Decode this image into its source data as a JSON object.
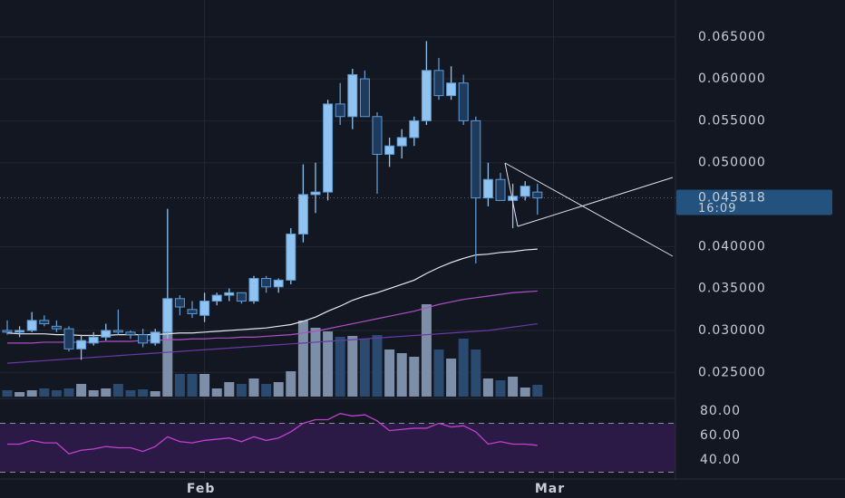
{
  "chart_data": {
    "type": "candlestick",
    "open": [
      0.03,
      0.0298,
      0.03,
      0.0312,
      0.0305,
      0.0302,
      0.0278,
      0.0285,
      0.0292,
      0.03,
      0.0298,
      0.0295,
      0.0285,
      0.0298,
      0.0338,
      0.0325,
      0.0318,
      0.0335,
      0.0342,
      0.0345,
      0.0335,
      0.0362,
      0.0352,
      0.036,
      0.0415,
      0.0462,
      0.0465,
      0.057,
      0.0555,
      0.06,
      0.0555,
      0.051,
      0.052,
      0.053,
      0.055,
      0.061,
      0.058,
      0.0595,
      0.055,
      0.0458,
      0.048,
      0.0455,
      0.046,
      0.0465
    ],
    "high": [
      0.0312,
      0.0305,
      0.0322,
      0.0318,
      0.0312,
      0.0305,
      0.0295,
      0.0298,
      0.0308,
      0.0325,
      0.03,
      0.0302,
      0.0302,
      0.0445,
      0.0342,
      0.0335,
      0.0345,
      0.0345,
      0.035,
      0.0345,
      0.0365,
      0.0365,
      0.0362,
      0.0422,
      0.0498,
      0.05,
      0.0575,
      0.0595,
      0.0612,
      0.061,
      0.056,
      0.053,
      0.054,
      0.0555,
      0.0645,
      0.0625,
      0.0615,
      0.0605,
      0.0555,
      0.05,
      0.0488,
      0.0475,
      0.0478,
      0.0475
    ],
    "low": [
      0.0295,
      0.0292,
      0.0298,
      0.0305,
      0.0298,
      0.0275,
      0.0265,
      0.0282,
      0.0288,
      0.0295,
      0.029,
      0.028,
      0.0282,
      0.029,
      0.0318,
      0.0315,
      0.031,
      0.033,
      0.0335,
      0.0332,
      0.0332,
      0.0345,
      0.0345,
      0.0355,
      0.0405,
      0.044,
      0.0455,
      0.0545,
      0.054,
      0.0555,
      0.0463,
      0.0495,
      0.0505,
      0.052,
      0.0545,
      0.0575,
      0.0575,
      0.0545,
      0.038,
      0.0448,
      0.0455,
      0.0422,
      0.0455,
      0.0438
    ],
    "close": [
      0.0298,
      0.03,
      0.0312,
      0.0308,
      0.0302,
      0.0278,
      0.0288,
      0.0292,
      0.03,
      0.0298,
      0.0295,
      0.0285,
      0.0298,
      0.0338,
      0.0328,
      0.032,
      0.0335,
      0.0342,
      0.0345,
      0.0335,
      0.0362,
      0.0352,
      0.036,
      0.0415,
      0.0462,
      0.0465,
      0.057,
      0.0555,
      0.0605,
      0.0555,
      0.051,
      0.052,
      0.053,
      0.055,
      0.061,
      0.058,
      0.0595,
      0.055,
      0.0458,
      0.048,
      0.0455,
      0.046,
      0.0472,
      0.0458
    ],
    "volume": [
      7,
      5,
      7,
      9,
      7,
      9,
      14,
      7,
      9,
      14,
      7,
      8,
      6,
      108,
      25,
      25,
      25,
      9,
      16,
      14,
      20,
      14,
      16,
      28,
      84,
      76,
      72,
      66,
      67,
      64,
      68,
      52,
      48,
      44,
      102,
      52,
      42,
      64,
      52,
      20,
      18,
      22,
      10,
      13
    ],
    "volume_ylim": [
      0,
      150
    ],
    "moving_averages": [
      {
        "color": "#e8e8ee",
        "values": [
          0.0297,
          0.0296,
          0.0296,
          0.0296,
          0.0295,
          0.0295,
          0.0294,
          0.0294,
          0.0294,
          0.0295,
          0.0295,
          0.0295,
          0.0295,
          0.0296,
          0.0297,
          0.0297,
          0.0298,
          0.0299,
          0.03,
          0.0301,
          0.0302,
          0.0303,
          0.0305,
          0.0307,
          0.0311,
          0.0316,
          0.0323,
          0.0329,
          0.0336,
          0.0341,
          0.0345,
          0.035,
          0.0355,
          0.036,
          0.0368,
          0.0375,
          0.0381,
          0.0386,
          0.039,
          0.0391,
          0.0393,
          0.0394,
          0.0396,
          0.0397
        ]
      },
      {
        "color": "#b04fc8",
        "values": [
          0.0285,
          0.0285,
          0.0285,
          0.0286,
          0.0286,
          0.0286,
          0.0286,
          0.0286,
          0.0287,
          0.0287,
          0.0287,
          0.0288,
          0.0288,
          0.0289,
          0.0289,
          0.029,
          0.029,
          0.0291,
          0.0291,
          0.0292,
          0.0292,
          0.0293,
          0.0294,
          0.0295,
          0.0297,
          0.0299,
          0.0302,
          0.0305,
          0.0308,
          0.0311,
          0.0314,
          0.0317,
          0.032,
          0.0323,
          0.0327,
          0.0331,
          0.0334,
          0.0337,
          0.0339,
          0.0341,
          0.0343,
          0.0345,
          0.0346,
          0.0347
        ]
      },
      {
        "color": "#6a3aa8",
        "values": [
          0.0261,
          0.0262,
          0.0263,
          0.0264,
          0.0265,
          0.0266,
          0.0267,
          0.0268,
          0.0269,
          0.027,
          0.0271,
          0.0272,
          0.0273,
          0.0274,
          0.0275,
          0.0276,
          0.0277,
          0.0278,
          0.0279,
          0.028,
          0.0281,
          0.0282,
          0.0283,
          0.0284,
          0.0285,
          0.0286,
          0.0287,
          0.0288,
          0.0289,
          0.029,
          0.0291,
          0.0292,
          0.0293,
          0.0294,
          0.0295,
          0.0296,
          0.0297,
          0.0298,
          0.0299,
          0.03,
          0.0302,
          0.0304,
          0.0306,
          0.0308
        ]
      }
    ],
    "up_color": "#90c3ef",
    "down_color": "#1e3a5c",
    "outline_color": "#5d9bd6",
    "volume_up_color": "#7d8ea8",
    "volume_down_color": "#2a4a70",
    "ylim": [
      0.0219,
      0.0694
    ],
    "yticks": [
      {
        "value": 0.025,
        "label": "0.025000"
      },
      {
        "value": 0.03,
        "label": "0.030000"
      },
      {
        "value": 0.035,
        "label": "0.035000"
      },
      {
        "value": 0.04,
        "label": "0.040000"
      },
      {
        "value": 0.05,
        "label": "0.050000"
      },
      {
        "value": 0.055,
        "label": "0.055000"
      },
      {
        "value": 0.06,
        "label": "0.060000"
      },
      {
        "value": 0.065,
        "label": "0.065000"
      }
    ],
    "xticks": [
      {
        "value": 16,
        "label": "Feb"
      },
      {
        "value": 44.3,
        "label": "Mar"
      }
    ],
    "last_price": {
      "value": 0.045818,
      "label": "0.045818"
    },
    "countdown": "16:09",
    "price_label_color": "#22527d",
    "rsi": {
      "color": "#c040d0",
      "values": [
        53,
        53,
        56,
        54,
        54,
        45,
        48,
        49,
        51,
        50,
        50,
        47,
        51,
        59,
        55,
        54,
        56,
        57,
        58,
        55,
        59,
        56,
        58,
        63,
        70,
        73,
        73,
        78,
        76,
        77,
        72,
        64,
        65,
        66,
        66,
        70,
        67,
        68,
        63,
        53,
        55,
        53,
        53,
        52
      ],
      "ylim": [
        25.2,
        85.2
      ],
      "bands": [
        70,
        30
      ],
      "band_color": "#2a1a45",
      "yticks": [
        {
          "value": 80,
          "label": "80.00"
        },
        {
          "value": 60,
          "label": "60.00"
        },
        {
          "value": 40,
          "label": "40.00"
        }
      ]
    },
    "grid": true
  }
}
